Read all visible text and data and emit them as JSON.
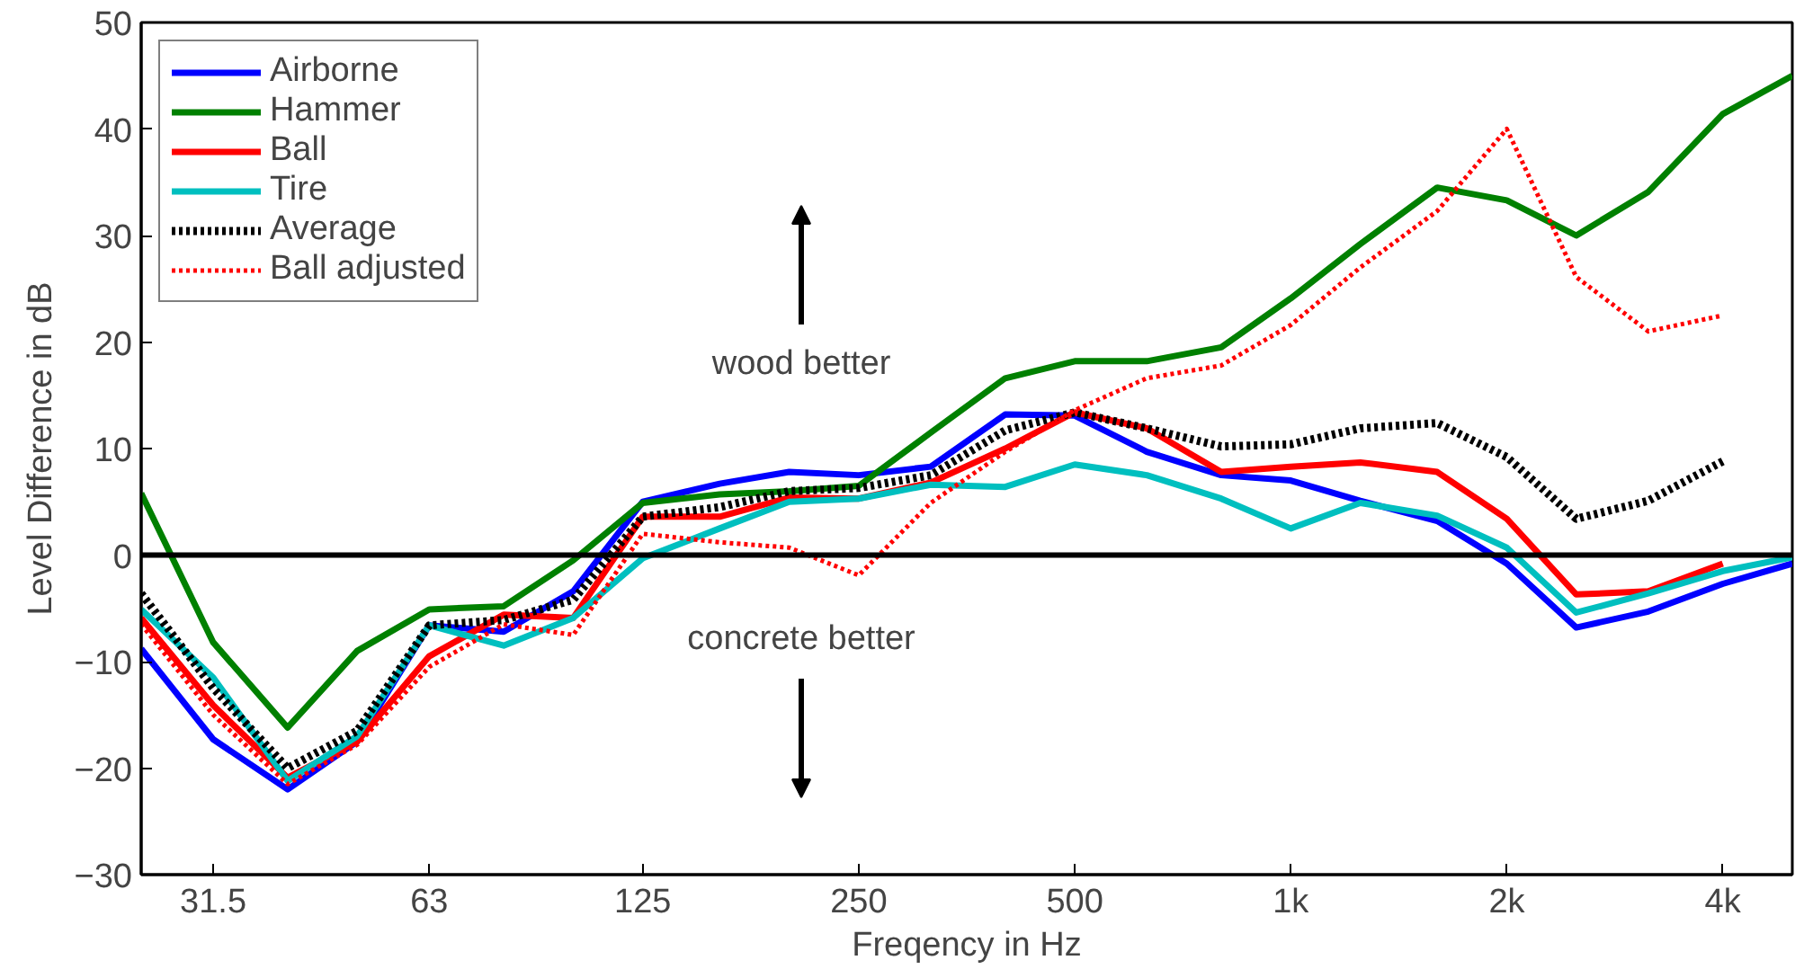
{
  "chart_data": {
    "type": "line",
    "xlabel": "Freqency in Hz",
    "ylabel": "Level Difference in dB",
    "x": [
      25,
      31.5,
      40,
      50,
      63,
      80,
      100,
      125,
      160,
      200,
      250,
      315,
      400,
      500,
      630,
      800,
      1000,
      1250,
      1600,
      2000,
      2500,
      3150,
      4000,
      5000
    ],
    "xlim": [
      25,
      5000
    ],
    "xticks": [
      {
        "value": 31.5,
        "label": "31.5"
      },
      {
        "value": 63,
        "label": "63"
      },
      {
        "value": 125,
        "label": "125"
      },
      {
        "value": 250,
        "label": "250"
      },
      {
        "value": 500,
        "label": "500"
      },
      {
        "value": 1000,
        "label": "1k"
      },
      {
        "value": 2000,
        "label": "2k"
      },
      {
        "value": 4000,
        "label": "4k"
      }
    ],
    "log": "x",
    "ylim": [
      -30,
      50
    ],
    "yticks": [
      -30,
      -20,
      -10,
      0,
      10,
      20,
      30,
      40,
      50
    ],
    "grid": false,
    "legend": "top left",
    "series": [
      {
        "name": "Airborne",
        "color": "#0000ff",
        "line_style": "solid",
        "values": [
          -8.8,
          -17.3,
          -22,
          -17.5,
          -6.6,
          -7.2,
          -3.4,
          5.0,
          6.7,
          7.8,
          7.5,
          8.3,
          13.2,
          13.1,
          9.7,
          7.5,
          7.0,
          5.1,
          3.2,
          -0.8,
          -6.8,
          -5.3,
          -2.7,
          -0.8
        ]
      },
      {
        "name": "Hammer",
        "color": "#008000",
        "line_style": "solid",
        "values": [
          5.8,
          -8.2,
          -16.2,
          -9,
          -5.1,
          -4.8,
          -0.5,
          4.9,
          5.7,
          6.0,
          6.5,
          11.5,
          16.6,
          18.2,
          18.2,
          19.5,
          24.1,
          29.2,
          34.5,
          33.3,
          30.0,
          34.1,
          41.4,
          45
        ]
      },
      {
        "name": "Ball",
        "color": "#ff0000",
        "line_style": "solid",
        "values": [
          -5.9,
          -14.1,
          -20.9,
          -17.5,
          -9.5,
          -5.6,
          -5.9,
          3.6,
          3.6,
          5.4,
          5.3,
          6.8,
          10.0,
          13.4,
          11.9,
          7.8,
          8.3,
          8.7,
          7.8,
          3.4,
          -3.7,
          -3.4,
          -0.8,
          null
        ]
      },
      {
        "name": "Tire",
        "color": "#00bfbf",
        "line_style": "solid",
        "values": [
          -5.1,
          -11.5,
          -21.2,
          -17,
          -6.6,
          -8.5,
          -5.9,
          -0.3,
          2.5,
          5.0,
          5.3,
          6.6,
          6.4,
          8.5,
          7.5,
          5.3,
          2.5,
          4.9,
          3.7,
          0.7,
          -5.4,
          -3.6,
          -1.5,
          -0.2
        ]
      },
      {
        "name": "Average",
        "color": "#000000",
        "line_style": "dotted",
        "values": [
          -3.6,
          -12.5,
          -20.0,
          -16.5,
          -6.6,
          -6.1,
          -4.2,
          3.6,
          4.5,
          6.0,
          6.3,
          7.5,
          11.7,
          13.4,
          11.9,
          10.2,
          10.4,
          11.9,
          12.4,
          9.2,
          3.4,
          5.1,
          8.8,
          null
        ]
      },
      {
        "name": "Ball adjusted",
        "color": "#ff0000",
        "line_style": "dotted",
        "values": [
          -6.5,
          -15,
          -21.5,
          -17.8,
          -10.5,
          -6.5,
          -7.5,
          2.0,
          1.2,
          0.7,
          -1.9,
          4.9,
          9.7,
          13.6,
          16.6,
          17.8,
          21.6,
          27.0,
          32.3,
          40.0,
          26.1,
          21.0,
          22.5,
          null
        ]
      }
    ],
    "ref_lines": [
      {
        "axis": "y",
        "value": 0,
        "color": "#000000",
        "line_style": "solid"
      }
    ],
    "annotations": [
      "wood better",
      "concrete better"
    ]
  }
}
